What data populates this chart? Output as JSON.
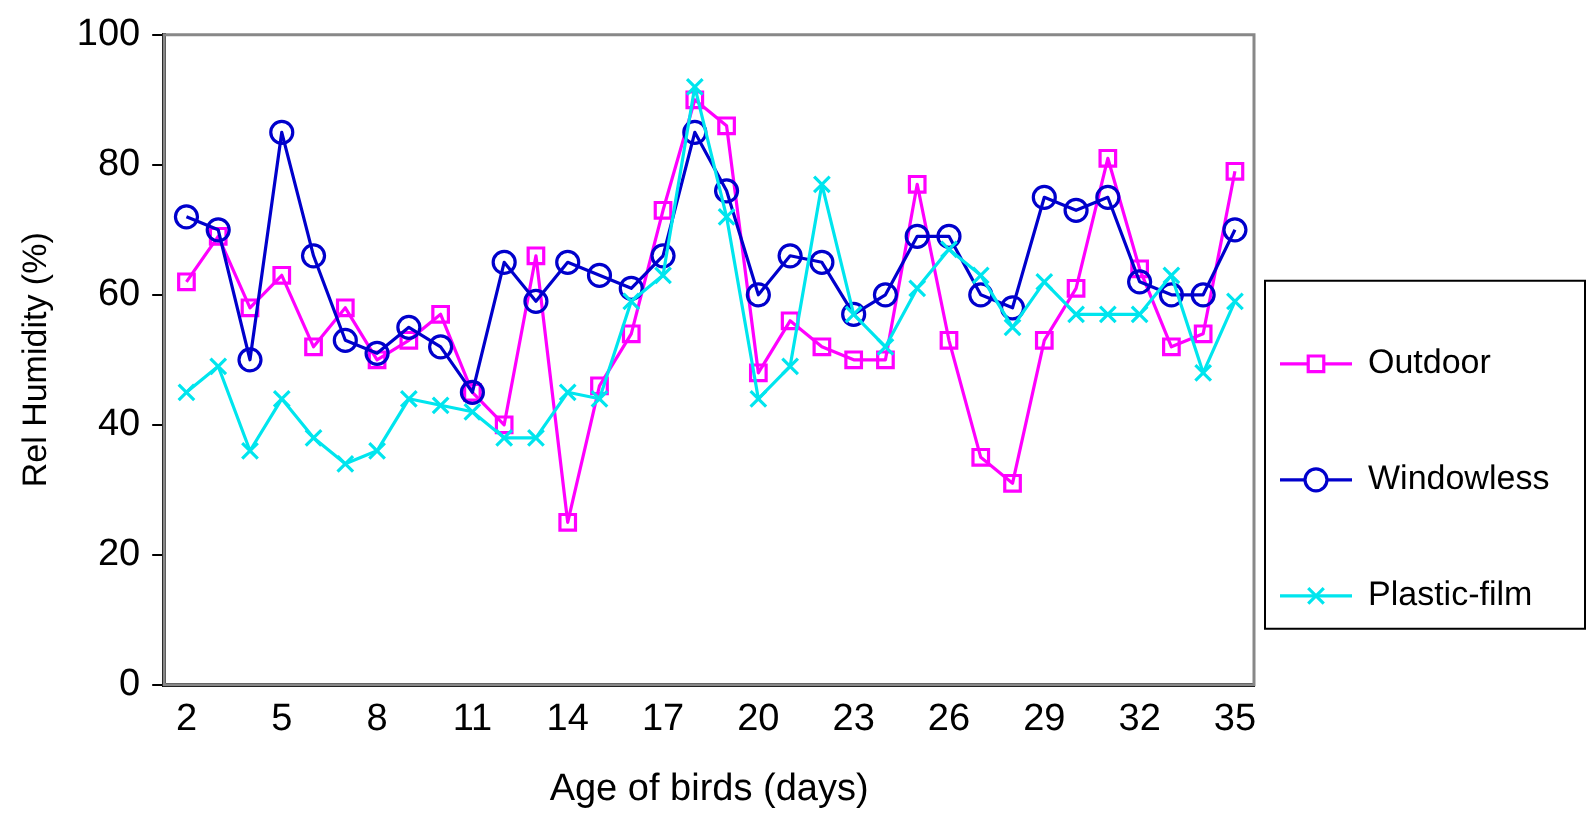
{
  "chart_data": {
    "type": "line",
    "xlabel": "Age of birds (days)",
    "ylabel": "Rel Humidity (%)",
    "x": [
      2,
      3,
      4,
      5,
      6,
      7,
      8,
      9,
      10,
      11,
      12,
      13,
      14,
      15,
      16,
      17,
      18,
      19,
      20,
      21,
      22,
      23,
      24,
      25,
      26,
      27,
      28,
      29,
      30,
      31,
      32,
      33,
      34,
      35
    ],
    "xlim": [
      1.3,
      35.6
    ],
    "xticks": [
      2,
      5,
      8,
      11,
      14,
      17,
      20,
      23,
      26,
      29,
      32,
      35
    ],
    "ylim": [
      0,
      100
    ],
    "yticks": [
      0,
      20,
      40,
      60,
      80,
      100
    ],
    "grid": false,
    "legend": "right",
    "series": [
      {
        "name": "Outdoor",
        "color": "#ff00ff",
        "marker": "square",
        "values": [
          62,
          69,
          58,
          63,
          52,
          58,
          50,
          53,
          57,
          45,
          40,
          66,
          25,
          46,
          54,
          73,
          90,
          86,
          48,
          56,
          52,
          50,
          50,
          77,
          53,
          35,
          31,
          53,
          61,
          81,
          64,
          52,
          54,
          79
        ]
      },
      {
        "name": "Windowless",
        "color": "#0000cc",
        "marker": "circle",
        "values": [
          72,
          70,
          50,
          85,
          66,
          53,
          51,
          55,
          52,
          45,
          65,
          59,
          65,
          63,
          61,
          66,
          85,
          76,
          60,
          66,
          65,
          57,
          60,
          69,
          69,
          60,
          58,
          75,
          73,
          75,
          62,
          60,
          60,
          70
        ]
      },
      {
        "name": "Plastic-film",
        "color": "#00e5ee",
        "marker": "cross",
        "values": [
          45,
          49,
          36,
          44,
          38,
          34,
          36,
          44,
          43,
          42,
          38,
          38,
          45,
          44,
          59,
          63,
          92,
          72,
          44,
          49,
          77,
          57,
          52,
          61,
          67,
          63,
          55,
          62,
          57,
          57,
          57,
          63,
          48,
          59
        ]
      }
    ]
  }
}
